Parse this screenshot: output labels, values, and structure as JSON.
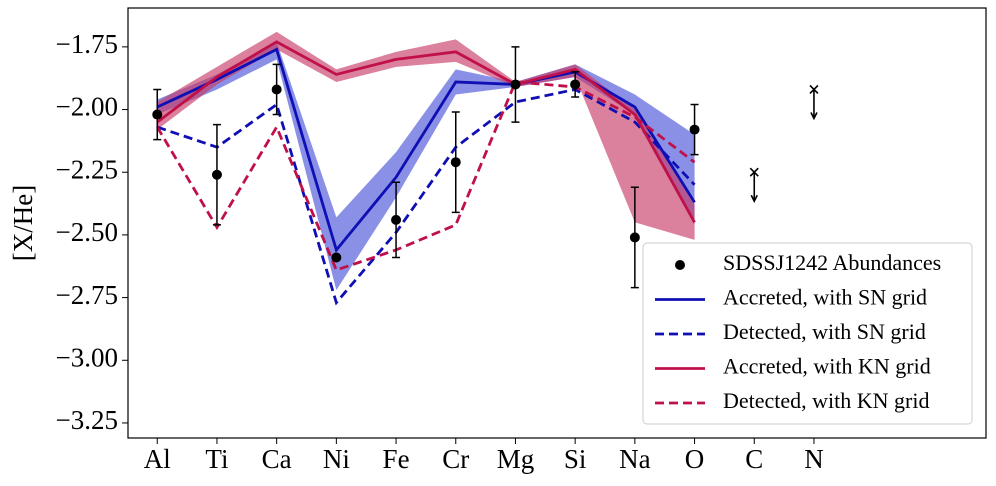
{
  "chart_data": {
    "type": "line",
    "ylabel": "[X/He]",
    "categories": [
      "Al",
      "Ti",
      "Ca",
      "Ni",
      "Fe",
      "Cr",
      "Mg",
      "Si",
      "Na",
      "O",
      "C",
      "N"
    ],
    "ylim": [
      -3.31,
      -1.595
    ],
    "yticks": [
      {
        "value": -3.25,
        "label": "−3.25"
      },
      {
        "value": -3.0,
        "label": "−3.00"
      },
      {
        "value": -2.75,
        "label": "−2.75"
      },
      {
        "value": -2.5,
        "label": "−2.50"
      },
      {
        "value": -2.25,
        "label": "−2.25"
      },
      {
        "value": -2.0,
        "label": "−2.00"
      },
      {
        "value": -1.75,
        "label": "−1.75"
      }
    ],
    "legend": "lower right",
    "observed": {
      "name": "SDSSJ1242 Abundances",
      "color": "#000000",
      "values": [
        -2.02,
        -2.26,
        -1.92,
        -2.59,
        -2.44,
        -2.21,
        -1.9,
        -1.9,
        -2.51,
        -2.08,
        null,
        null
      ],
      "errors": [
        0.1,
        0.2,
        0.1,
        0.0,
        0.15,
        0.2,
        0.15,
        0.05,
        0.2,
        0.1,
        null,
        null
      ],
      "upper_limits": [
        null,
        null,
        null,
        null,
        null,
        null,
        null,
        null,
        null,
        null,
        -2.25,
        -1.92
      ]
    },
    "series": [
      {
        "name": "Accreted, with SN grid",
        "color": "#0f0fb4",
        "style": "solid",
        "band_color": "#4a55d8",
        "values": [
          -1.99,
          -1.88,
          -1.76,
          -2.56,
          -2.27,
          -1.89,
          -1.9,
          -1.85,
          -1.99,
          -2.37,
          null,
          null
        ],
        "lower": [
          -2.02,
          -1.92,
          -1.8,
          -2.72,
          -2.35,
          -1.94,
          -1.91,
          -1.87,
          -2.02,
          -2.46,
          null,
          null
        ],
        "upper": [
          -1.96,
          -1.86,
          -1.73,
          -2.43,
          -2.17,
          -1.84,
          -1.89,
          -1.82,
          -1.94,
          -2.1,
          null,
          null
        ]
      },
      {
        "name": "Detected, with SN grid",
        "color": "#0f0fb4",
        "style": "dashed",
        "values": [
          -2.07,
          -2.15,
          -1.98,
          -2.77,
          -2.49,
          -2.15,
          -1.97,
          -1.92,
          -2.05,
          -2.3,
          null,
          null
        ]
      },
      {
        "name": "Accreted, with KN grid",
        "color": "#c0104a",
        "style": "solid",
        "band_color": "#c83c68",
        "values": [
          -2.05,
          -1.87,
          -1.73,
          -1.86,
          -1.8,
          -1.77,
          -1.9,
          -1.84,
          -2.02,
          -2.45,
          null,
          null
        ],
        "lower": [
          -2.08,
          -1.9,
          -1.76,
          -1.89,
          -1.83,
          -1.81,
          -1.91,
          -1.87,
          -2.45,
          -2.52,
          null,
          null
        ],
        "upper": [
          -1.97,
          -1.83,
          -1.69,
          -1.84,
          -1.77,
          -1.72,
          -1.89,
          -1.82,
          -2.0,
          -2.38,
          null,
          null
        ]
      },
      {
        "name": "Detected, with KN grid",
        "color": "#c0104a",
        "style": "dashed",
        "values": [
          -2.07,
          -2.47,
          -2.07,
          -2.64,
          -2.56,
          -2.46,
          -1.89,
          -1.91,
          -2.03,
          -2.21,
          null,
          null
        ]
      }
    ]
  }
}
